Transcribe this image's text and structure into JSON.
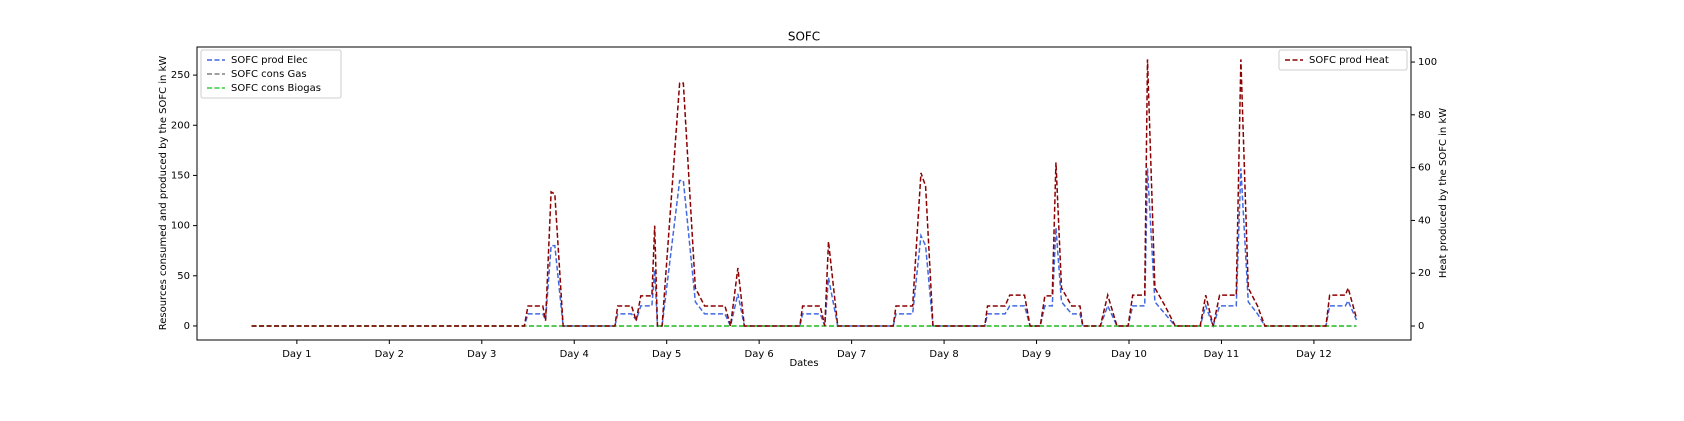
{
  "chart_data": {
    "type": "line",
    "title": "SOFC",
    "xlabel": "Dates",
    "ylabel": "Resources consumed and produced by the SOFC in kW",
    "y2label": "Heat produced by the SOFC in kW",
    "xlim": [
      -0.08,
      13.05
    ],
    "xticks": [
      {
        "value": 1,
        "label": "Day 1"
      },
      {
        "value": 2,
        "label": "Day 2"
      },
      {
        "value": 3,
        "label": "Day 3"
      },
      {
        "value": 4,
        "label": "Day 4"
      },
      {
        "value": 5,
        "label": "Day 5"
      },
      {
        "value": 6,
        "label": "Day 6"
      },
      {
        "value": 7,
        "label": "Day 7"
      },
      {
        "value": 8,
        "label": "Day 8"
      },
      {
        "value": 9,
        "label": "Day 9"
      },
      {
        "value": 10,
        "label": "Day 10"
      },
      {
        "value": 11,
        "label": "Day 11"
      },
      {
        "value": 12,
        "label": "Day 12"
      }
    ],
    "ylim": [
      -14,
      278
    ],
    "yticks": [
      0,
      50,
      100,
      150,
      200,
      250
    ],
    "y2lim": [
      -5.3,
      105.7
    ],
    "y2ticks": [
      0,
      20,
      40,
      60,
      80,
      100
    ],
    "legend": "upper left",
    "legend_y2": "upper right",
    "grid": false,
    "x": [
      0.51,
      3.46,
      3.5,
      3.66,
      3.69,
      3.75,
      3.79,
      3.88,
      4.44,
      4.47,
      4.62,
      4.67,
      4.72,
      4.84,
      4.87,
      4.9,
      4.95,
      5.14,
      5.18,
      5.31,
      5.41,
      5.63,
      5.69,
      5.77,
      5.84,
      6.44,
      6.47,
      6.66,
      6.71,
      6.75,
      6.85,
      7.45,
      7.48,
      7.66,
      7.75,
      7.8,
      7.88,
      8.44,
      8.47,
      8.66,
      8.71,
      8.87,
      8.93,
      9.04,
      9.09,
      9.17,
      9.21,
      9.27,
      9.38,
      9.47,
      9.5,
      9.69,
      9.77,
      9.87,
      9.99,
      10.04,
      10.17,
      10.2,
      10.28,
      10.39,
      10.5,
      10.77,
      10.83,
      10.91,
      10.98,
      11.16,
      11.21,
      11.29,
      11.39,
      11.47,
      12.13,
      12.17,
      12.34,
      12.37,
      12.46
    ],
    "series": [
      {
        "name": "SOFC prod Elec",
        "color": "#4169e1",
        "axis": "y",
        "values": [
          0,
          0,
          12,
          12,
          6,
          80,
          80,
          0,
          0,
          12,
          12,
          6,
          20,
          20,
          56,
          0,
          0,
          145,
          145,
          24,
          12,
          12,
          0,
          32,
          0,
          0,
          12,
          12,
          0,
          48,
          0,
          0,
          12,
          12,
          90,
          80,
          0,
          0,
          12,
          12,
          20,
          20,
          0,
          0,
          20,
          20,
          98,
          24,
          12,
          12,
          0,
          0,
          20,
          0,
          0,
          20,
          20,
          157,
          24,
          12,
          0,
          0,
          20,
          0,
          20,
          20,
          157,
          24,
          12,
          0,
          0,
          20,
          20,
          25,
          6
        ]
      },
      {
        "name": "SOFC cons Gas",
        "color": "#808080",
        "axis": "y",
        "values": [
          0,
          0,
          0,
          0,
          0,
          0,
          0,
          0,
          0,
          0,
          0,
          0,
          0,
          0,
          0,
          0,
          0,
          0,
          0,
          0,
          0,
          0,
          0,
          0,
          0,
          0,
          0,
          0,
          0,
          0,
          0,
          0,
          0,
          0,
          0,
          0,
          0,
          0,
          0,
          0,
          0,
          0,
          0,
          0,
          0,
          0,
          0,
          0,
          0,
          0,
          0,
          0,
          0,
          0,
          0,
          0,
          0,
          0,
          0,
          0,
          0,
          0,
          0,
          0,
          0,
          0,
          0,
          0,
          0,
          0,
          0,
          0,
          0,
          0,
          0
        ]
      },
      {
        "name": "SOFC cons Biogas",
        "color": "#32cd32",
        "axis": "y",
        "values": [
          0,
          0,
          0,
          0,
          0,
          0,
          0,
          0,
          0,
          0,
          0,
          0,
          0,
          0,
          0,
          0,
          0,
          0,
          0,
          0,
          0,
          0,
          0,
          0,
          0,
          0,
          0,
          0,
          0,
          0,
          0,
          0,
          0,
          0,
          0,
          0,
          0,
          0,
          0,
          0,
          0,
          0,
          0,
          0,
          0,
          0,
          0,
          0,
          0,
          0,
          0,
          0,
          0,
          0,
          0,
          0,
          0,
          0,
          0,
          0,
          0,
          0,
          0,
          0,
          0,
          0,
          0,
          0,
          0,
          0,
          0,
          0,
          0,
          0,
          0
        ]
      },
      {
        "name": "SOFC prod Heat",
        "color": "#8b0000",
        "axis": "y2",
        "values": [
          0,
          0,
          7.6,
          7.6,
          2,
          50.8,
          50,
          0,
          0,
          7.6,
          7.6,
          2,
          11.4,
          11.4,
          38,
          0,
          0,
          92,
          92,
          14.4,
          7.6,
          7.6,
          0,
          22,
          0,
          0,
          7.6,
          7.6,
          0,
          32,
          0,
          0,
          7.6,
          7.6,
          58,
          53,
          0,
          0,
          7.6,
          7.6,
          11.7,
          11.7,
          0,
          0,
          11.4,
          11.4,
          62,
          14.4,
          7.6,
          7.6,
          0,
          0,
          11.7,
          0,
          0,
          11.7,
          11.7,
          101,
          14.4,
          7.6,
          0,
          0,
          11.7,
          0,
          11.7,
          11.7,
          101,
          14.4,
          7.6,
          0,
          0,
          11.7,
          11.7,
          14.4,
          3
        ]
      }
    ]
  }
}
